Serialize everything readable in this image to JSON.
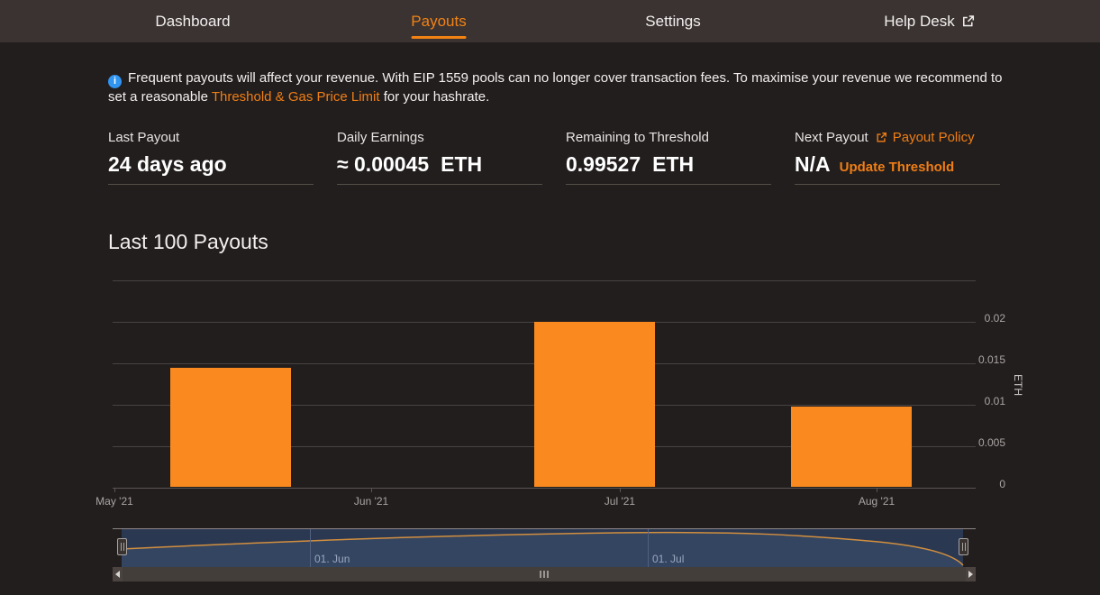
{
  "nav": {
    "items": [
      {
        "label": "Dashboard",
        "active": false
      },
      {
        "label": "Payouts",
        "active": true
      },
      {
        "label": "Settings",
        "active": false
      },
      {
        "label": "Help Desk",
        "active": false,
        "icon": "external-link-icon"
      }
    ]
  },
  "banner": {
    "icon": "info-icon",
    "text_before": "Frequent payouts will affect your revenue. With EIP 1559 pools can no longer cover transaction fees. To maximise your revenue we recommend to set a reasonable ",
    "link_text": "Threshold & Gas Price Limit",
    "text_after": " for your hashrate."
  },
  "stats": [
    {
      "label": "Last Payout",
      "value": "24 days ago",
      "unit": ""
    },
    {
      "label": "Daily Earnings",
      "value": "≈ 0.00045",
      "unit": "ETH"
    },
    {
      "label": "Remaining to Threshold",
      "value": "0.99527",
      "unit": "ETH"
    },
    {
      "label": "Next Payout",
      "label_link": "Payout Policy",
      "value": "N/A",
      "value_link": "Update Threshold"
    }
  ],
  "section": {
    "title": "Last 100 Payouts"
  },
  "chart_data": {
    "type": "bar",
    "title": "Last 100 Payouts",
    "xlabel": "",
    "ylabel": "ETH",
    "x": [
      "2021-05-15",
      "2021-06-28",
      "2021-07-29"
    ],
    "values": [
      0.0144,
      0.02,
      0.0097
    ],
    "xticks": [
      "May '21",
      "Jun '21",
      "Jul '21",
      "Aug '21"
    ],
    "xtick_dates": [
      "2021-05-01",
      "2021-06-01",
      "2021-07-01",
      "2021-08-01"
    ],
    "yticks": [
      0,
      0.005,
      0.01,
      0.015,
      0.02
    ],
    "ylim": [
      0,
      0.025
    ],
    "grid": true,
    "y_axis_side": "right",
    "legend": "none",
    "navigator": {
      "labels": [
        "01. Jun",
        "01. Jul"
      ],
      "range_start": "2021-05-15",
      "range_end": "2021-07-29"
    }
  },
  "colors": {
    "accent": "#ef7e14",
    "nav_active": "#f28214",
    "bar": "#fa8a1f",
    "info_blue": "#3094f1",
    "navigator_fill": "#2b3852",
    "navigator_area": "#334561",
    "navigator_line": "#d28f3e"
  }
}
